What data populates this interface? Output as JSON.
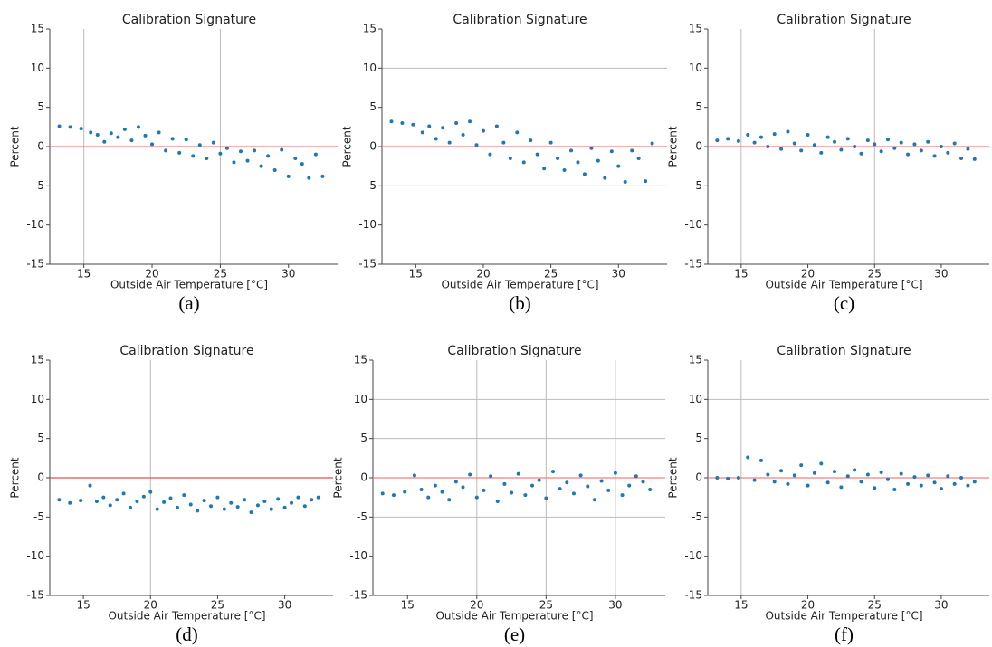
{
  "chart_data": [
    {
      "type": "scatter",
      "title": "Calibration Signature",
      "xlabel": "Outside Air Temperature [°C]",
      "ylabel": "Percent",
      "caption": "(a)",
      "color": "#1f77b4",
      "hline": 0,
      "hline_color": "#f08080",
      "xgrid": [
        15,
        25
      ],
      "ygrid": [],
      "xlim": [
        12.5,
        33.6
      ],
      "ylim": [
        -15,
        15
      ],
      "xticks": [
        15,
        20,
        25,
        30
      ],
      "yticks": [
        -15,
        -10,
        -5,
        0,
        5,
        10,
        15
      ],
      "x": [
        13.2,
        14.0,
        14.8,
        15.5,
        16.0,
        16.5,
        17.0,
        17.5,
        18.0,
        18.5,
        19.0,
        19.5,
        20.0,
        20.5,
        21.0,
        21.5,
        22.0,
        22.5,
        23.0,
        23.5,
        24.0,
        24.5,
        25.0,
        25.5,
        26.0,
        26.5,
        27.0,
        27.5,
        28.0,
        28.5,
        29.0,
        29.5,
        30.0,
        30.5,
        31.0,
        31.5,
        32.0,
        32.5
      ],
      "y": [
        2.6,
        2.5,
        2.3,
        1.8,
        1.5,
        0.6,
        1.7,
        1.2,
        2.2,
        0.8,
        2.5,
        1.4,
        0.3,
        1.8,
        -0.5,
        1.0,
        -0.8,
        0.9,
        -1.2,
        0.2,
        -1.5,
        0.5,
        -0.9,
        -0.2,
        -2.0,
        -0.6,
        -1.8,
        -0.5,
        -2.5,
        -1.2,
        -3.0,
        -0.4,
        -3.8,
        -1.5,
        -2.2,
        -4.0,
        -1.0,
        -3.8
      ]
    },
    {
      "type": "scatter",
      "title": "Calibration Signature",
      "xlabel": "Outside Air Temperature [°C]",
      "ylabel": "Percent",
      "caption": "(b)",
      "color": "#1f77b4",
      "hline": 0,
      "hline_color": "#f08080",
      "xgrid": [],
      "ygrid": [
        10,
        -5
      ],
      "xlim": [
        12.5,
        33.6
      ],
      "ylim": [
        -15,
        15
      ],
      "xticks": [
        15,
        20,
        25,
        30
      ],
      "yticks": [
        -15,
        -10,
        -5,
        0,
        5,
        10,
        15
      ],
      "x": [
        13.2,
        14.0,
        14.8,
        15.5,
        16.0,
        16.5,
        17.0,
        17.5,
        18.0,
        18.5,
        19.0,
        19.5,
        20.0,
        20.5,
        21.0,
        21.5,
        22.0,
        22.5,
        23.0,
        23.5,
        24.0,
        24.5,
        25.0,
        25.5,
        26.0,
        26.5,
        27.0,
        27.5,
        28.0,
        28.5,
        29.0,
        29.5,
        30.0,
        30.5,
        31.0,
        31.5,
        32.0,
        32.5
      ],
      "y": [
        3.2,
        3.0,
        2.8,
        1.8,
        2.6,
        1.0,
        2.4,
        0.5,
        3.0,
        1.5,
        3.2,
        0.2,
        2.0,
        -1.0,
        2.6,
        0.5,
        -1.5,
        1.8,
        -2.0,
        0.8,
        -1.0,
        -2.8,
        0.5,
        -1.5,
        -3.0,
        -0.5,
        -2.0,
        -3.5,
        -0.2,
        -1.8,
        -4.0,
        -0.6,
        -2.5,
        -4.5,
        -0.5,
        -1.5,
        -4.4,
        0.4
      ]
    },
    {
      "type": "scatter",
      "title": "Calibration Signature",
      "xlabel": "Outside Air Temperature [°C]",
      "ylabel": "Percent",
      "caption": "(c)",
      "color": "#1f77b4",
      "hline": 0,
      "hline_color": "#f08080",
      "xgrid": [
        15,
        25
      ],
      "ygrid": [],
      "xlim": [
        12.5,
        33.6
      ],
      "ylim": [
        -15,
        15
      ],
      "xticks": [
        15,
        20,
        25,
        30
      ],
      "yticks": [
        -15,
        -10,
        -5,
        0,
        5,
        10,
        15
      ],
      "x": [
        13.2,
        14.0,
        14.8,
        15.5,
        16.0,
        16.5,
        17.0,
        17.5,
        18.0,
        18.5,
        19.0,
        19.5,
        20.0,
        20.5,
        21.0,
        21.5,
        22.0,
        22.5,
        23.0,
        23.5,
        24.0,
        24.5,
        25.0,
        25.5,
        26.0,
        26.5,
        27.0,
        27.5,
        28.0,
        28.5,
        29.0,
        29.5,
        30.0,
        30.5,
        31.0,
        31.5,
        32.0,
        32.5
      ],
      "y": [
        0.8,
        1.0,
        0.7,
        1.5,
        0.5,
        1.2,
        0.0,
        1.6,
        -0.3,
        1.9,
        0.4,
        -0.5,
        1.5,
        0.2,
        -0.8,
        1.2,
        0.6,
        -0.4,
        1.0,
        0.0,
        -0.9,
        0.8,
        0.3,
        -0.6,
        0.9,
        -0.2,
        0.5,
        -1.0,
        0.3,
        -0.5,
        0.6,
        -1.2,
        0.0,
        -0.8,
        0.4,
        -1.5,
        -0.3,
        -1.6
      ]
    },
    {
      "type": "scatter",
      "title": "Calibration Signature",
      "xlabel": "Outside Air Temperature [°C]",
      "ylabel": "Percent",
      "caption": "(d)",
      "color": "#1f77b4",
      "hline": 0,
      "hline_color": "#e05050",
      "xgrid": [
        20
      ],
      "ygrid": [],
      "xlim": [
        12.5,
        33.6
      ],
      "ylim": [
        -15,
        15
      ],
      "xticks": [
        15,
        20,
        25,
        30
      ],
      "yticks": [
        -15,
        -10,
        -5,
        0,
        5,
        10,
        15
      ],
      "x": [
        13.2,
        14.0,
        14.8,
        15.5,
        16.0,
        16.5,
        17.0,
        17.5,
        18.0,
        18.5,
        19.0,
        19.5,
        20.0,
        20.5,
        21.0,
        21.5,
        22.0,
        22.5,
        23.0,
        23.5,
        24.0,
        24.5,
        25.0,
        25.5,
        26.0,
        26.5,
        27.0,
        27.5,
        28.0,
        28.5,
        29.0,
        29.5,
        30.0,
        30.5,
        31.0,
        31.5,
        32.0,
        32.5
      ],
      "y": [
        -2.8,
        -3.2,
        -2.9,
        -1.0,
        -3.0,
        -2.5,
        -3.5,
        -2.8,
        -2.0,
        -3.8,
        -3.0,
        -2.4,
        -1.8,
        -4.0,
        -3.1,
        -2.6,
        -3.8,
        -2.2,
        -3.4,
        -4.2,
        -2.9,
        -3.6,
        -2.5,
        -4.0,
        -3.2,
        -3.7,
        -2.8,
        -4.4,
        -3.5,
        -3.0,
        -4.0,
        -2.7,
        -3.8,
        -3.2,
        -2.5,
        -3.6,
        -2.8,
        -2.5
      ]
    },
    {
      "type": "scatter",
      "title": "Calibration Signature",
      "xlabel": "Outside Air Temperature [°C]",
      "ylabel": "Percent",
      "caption": "(e)",
      "color": "#1f77b4",
      "hline": 0,
      "hline_color": "#f08080",
      "xgrid": [
        20,
        25,
        30
      ],
      "ygrid": [
        10,
        5,
        -5
      ],
      "xlim": [
        12.5,
        33.6
      ],
      "ylim": [
        -15,
        15
      ],
      "xticks": [
        15,
        20,
        25,
        30
      ],
      "yticks": [
        -15,
        -10,
        -5,
        0,
        5,
        10,
        15
      ],
      "x": [
        13.2,
        14.0,
        14.8,
        15.5,
        16.0,
        16.5,
        17.0,
        17.5,
        18.0,
        18.5,
        19.0,
        19.5,
        20.0,
        20.5,
        21.0,
        21.5,
        22.0,
        22.5,
        23.0,
        23.5,
        24.0,
        24.5,
        25.0,
        25.5,
        26.0,
        26.5,
        27.0,
        27.5,
        28.0,
        28.5,
        29.0,
        29.5,
        30.0,
        30.5,
        31.0,
        31.5,
        32.0,
        32.5
      ],
      "y": [
        -2.0,
        -2.2,
        -1.8,
        0.3,
        -1.5,
        -2.5,
        -1.0,
        -1.8,
        -2.8,
        -0.5,
        -1.2,
        0.4,
        -2.5,
        -1.6,
        0.2,
        -3.0,
        -0.8,
        -1.9,
        0.5,
        -2.2,
        -1.0,
        -0.3,
        -2.6,
        0.8,
        -1.4,
        -0.6,
        -2.0,
        0.3,
        -1.1,
        -2.8,
        -0.4,
        -1.6,
        0.6,
        -2.2,
        -1.0,
        0.2,
        -0.5,
        -1.5
      ]
    },
    {
      "type": "scatter",
      "title": "Calibration Signature",
      "xlabel": "Outside Air Temperature [°C]",
      "ylabel": "Percent",
      "caption": "(f)",
      "color": "#1f77b4",
      "hline": 0,
      "hline_color": "#f08080",
      "xgrid": [
        15
      ],
      "ygrid": [
        10
      ],
      "xlim": [
        12.5,
        33.6
      ],
      "ylim": [
        -15,
        15
      ],
      "xticks": [
        15,
        20,
        25,
        30
      ],
      "yticks": [
        -15,
        -10,
        -5,
        0,
        5,
        10,
        15
      ],
      "x": [
        13.2,
        14.0,
        14.8,
        15.5,
        16.0,
        16.5,
        17.0,
        17.5,
        18.0,
        18.5,
        19.0,
        19.5,
        20.0,
        20.5,
        21.0,
        21.5,
        22.0,
        22.5,
        23.0,
        23.5,
        24.0,
        24.5,
        25.0,
        25.5,
        26.0,
        26.5,
        27.0,
        27.5,
        28.0,
        28.5,
        29.0,
        29.5,
        30.0,
        30.5,
        31.0,
        31.5,
        32.0,
        32.5
      ],
      "y": [
        0.0,
        -0.1,
        0.0,
        2.6,
        -0.3,
        2.2,
        0.4,
        -0.5,
        0.9,
        -0.8,
        0.3,
        1.6,
        -1.0,
        0.6,
        1.8,
        -0.6,
        0.8,
        -1.2,
        0.2,
        1.0,
        -0.5,
        0.4,
        -1.3,
        0.7,
        -0.2,
        -1.5,
        0.5,
        -0.8,
        0.1,
        -1.0,
        0.3,
        -0.6,
        -1.4,
        0.2,
        -0.8,
        0.0,
        -1.0,
        -0.5
      ]
    }
  ]
}
